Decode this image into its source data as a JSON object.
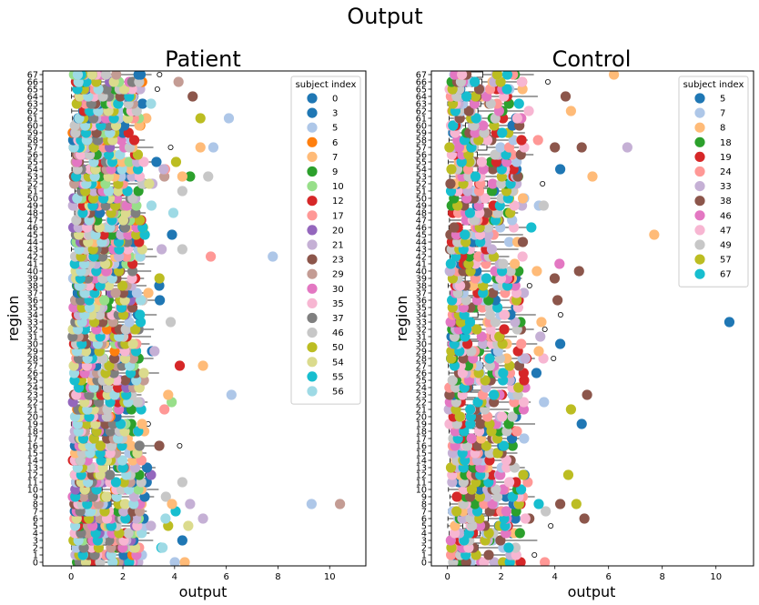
{
  "figure_title": "Output",
  "chart_data": [
    {
      "type": "scatter",
      "title": "Patient",
      "xlabel": "output",
      "ylabel": "region",
      "xlim": [
        -1.1,
        11.4
      ],
      "ylim": [
        -0.5,
        67.5
      ],
      "xticks": [
        0,
        2,
        4,
        6,
        8,
        10
      ],
      "yticks": [
        0,
        1,
        2,
        3,
        4,
        5,
        6,
        7,
        8,
        9,
        10,
        11,
        12,
        13,
        14,
        15,
        16,
        17,
        18,
        19,
        20,
        21,
        22,
        23,
        24,
        25,
        26,
        27,
        28,
        29,
        30,
        31,
        32,
        33,
        34,
        35,
        36,
        37,
        38,
        39,
        40,
        41,
        42,
        43,
        44,
        45,
        46,
        47,
        48,
        49,
        50,
        51,
        52,
        53,
        54,
        55,
        56,
        57,
        58,
        59,
        60,
        61,
        62,
        63,
        64,
        65,
        66,
        67
      ],
      "legend_title": "subject index",
      "legend_position": "top-right",
      "series": [
        {
          "name": "0",
          "color": "#1f77b4"
        },
        {
          "name": "3",
          "color": "#1f77b4"
        },
        {
          "name": "5",
          "color": "#aec7e8"
        },
        {
          "name": "6",
          "color": "#ff7f0e"
        },
        {
          "name": "7",
          "color": "#ffbb78"
        },
        {
          "name": "9",
          "color": "#2ca02c"
        },
        {
          "name": "10",
          "color": "#98df8a"
        },
        {
          "name": "12",
          "color": "#d62728"
        },
        {
          "name": "17",
          "color": "#ff9896"
        },
        {
          "name": "20",
          "color": "#9467bd"
        },
        {
          "name": "21",
          "color": "#c5b0d5"
        },
        {
          "name": "23",
          "color": "#8c564b"
        },
        {
          "name": "29",
          "color": "#c49c94"
        },
        {
          "name": "30",
          "color": "#e377c2"
        },
        {
          "name": "35",
          "color": "#f7b6d2"
        },
        {
          "name": "37",
          "color": "#7f7f7f"
        },
        {
          "name": "46",
          "color": "#c7c7c7"
        },
        {
          "name": "50",
          "color": "#bcbd22"
        },
        {
          "name": "54",
          "color": "#dbdb8d"
        },
        {
          "name": "55",
          "color": "#17becf"
        },
        {
          "name": "56",
          "color": "#9edae5"
        }
      ],
      "notable_points": [
        {
          "subject": "5",
          "x": 9.3,
          "y": 8
        },
        {
          "subject": "29",
          "x": 10.4,
          "y": 8
        },
        {
          "subject": "5",
          "x": 7.8,
          "y": 42
        },
        {
          "subject": "17",
          "x": 5.4,
          "y": 42
        },
        {
          "subject": "5",
          "x": 6.2,
          "y": 23
        },
        {
          "subject": "5",
          "x": 6.1,
          "y": 61
        },
        {
          "subject": "5",
          "x": 5.5,
          "y": 57
        },
        {
          "subject": "21",
          "x": 5.1,
          "y": 6
        },
        {
          "subject": "7",
          "x": 5.1,
          "y": 27
        },
        {
          "subject": "50",
          "x": 5.0,
          "y": 61
        },
        {
          "subject": "7",
          "x": 5.0,
          "y": 57
        },
        {
          "subject": "23",
          "x": 4.7,
          "y": 64
        },
        {
          "subject": "21",
          "x": 4.6,
          "y": 8
        },
        {
          "subject": "0",
          "x": 4.3,
          "y": 3
        },
        {
          "subject": "46",
          "x": 4.3,
          "y": 11
        },
        {
          "subject": "12",
          "x": 4.2,
          "y": 27
        },
        {
          "subject": "9",
          "x": 4.6,
          "y": 53
        },
        {
          "subject": "46",
          "x": 5.3,
          "y": 53
        },
        {
          "subject": "46",
          "x": 4.3,
          "y": 43
        },
        {
          "subject": "0",
          "x": 3.9,
          "y": 45
        },
        {
          "subject": "7",
          "x": 3.9,
          "y": 8
        },
        {
          "subject": "7",
          "x": 4.3,
          "y": 53
        }
      ]
    },
    {
      "type": "scatter",
      "title": "Control",
      "xlabel": "output",
      "ylabel": "region",
      "xlim": [
        -0.6,
        11.4
      ],
      "ylim": [
        -0.5,
        67.5
      ],
      "xticks": [
        0,
        2,
        4,
        6,
        8,
        10
      ],
      "yticks": [
        0,
        1,
        2,
        3,
        4,
        5,
        6,
        7,
        8,
        9,
        10,
        11,
        12,
        13,
        14,
        15,
        16,
        17,
        18,
        19,
        20,
        21,
        22,
        23,
        24,
        25,
        26,
        27,
        28,
        29,
        30,
        31,
        32,
        33,
        34,
        35,
        36,
        37,
        38,
        39,
        40,
        41,
        42,
        43,
        44,
        45,
        46,
        47,
        48,
        49,
        50,
        51,
        52,
        53,
        54,
        55,
        56,
        57,
        58,
        59,
        60,
        61,
        62,
        63,
        64,
        65,
        66,
        67
      ],
      "legend_title": "subject index",
      "legend_position": "top-right",
      "series": [
        {
          "name": "5",
          "color": "#1f77b4"
        },
        {
          "name": "7",
          "color": "#aec7e8"
        },
        {
          "name": "8",
          "color": "#ffbb78"
        },
        {
          "name": "18",
          "color": "#2ca02c"
        },
        {
          "name": "19",
          "color": "#d62728"
        },
        {
          "name": "24",
          "color": "#ff9896"
        },
        {
          "name": "33",
          "color": "#c5b0d5"
        },
        {
          "name": "38",
          "color": "#8c564b"
        },
        {
          "name": "46",
          "color": "#e377c2"
        },
        {
          "name": "47",
          "color": "#f7b6d2"
        },
        {
          "name": "49",
          "color": "#c7c7c7"
        },
        {
          "name": "57",
          "color": "#bcbd22"
        },
        {
          "name": "67",
          "color": "#17becf"
        }
      ],
      "notable_points": [
        {
          "subject": "5",
          "x": 10.5,
          "y": 33
        },
        {
          "subject": "8",
          "x": 7.7,
          "y": 45
        },
        {
          "subject": "33",
          "x": 6.7,
          "y": 57
        },
        {
          "subject": "8",
          "x": 6.2,
          "y": 67
        },
        {
          "subject": "8",
          "x": 5.4,
          "y": 53
        },
        {
          "subject": "38",
          "x": 5.2,
          "y": 23
        },
        {
          "subject": "38",
          "x": 5.1,
          "y": 6
        },
        {
          "subject": "5",
          "x": 5.0,
          "y": 19
        },
        {
          "subject": "38",
          "x": 5.0,
          "y": 57
        },
        {
          "subject": "38",
          "x": 4.9,
          "y": 40
        },
        {
          "subject": "57",
          "x": 4.8,
          "y": 8
        },
        {
          "subject": "57",
          "x": 4.6,
          "y": 21
        },
        {
          "subject": "8",
          "x": 4.6,
          "y": 62
        },
        {
          "subject": "57",
          "x": 4.5,
          "y": 12
        },
        {
          "subject": "38",
          "x": 4.4,
          "y": 64
        },
        {
          "subject": "5",
          "x": 4.2,
          "y": 30
        },
        {
          "subject": "5",
          "x": 4.2,
          "y": 54
        },
        {
          "subject": "38",
          "x": 4.2,
          "y": 8
        },
        {
          "subject": "38",
          "x": 4.1,
          "y": 36
        },
        {
          "subject": "38",
          "x": 4.0,
          "y": 57
        },
        {
          "subject": "8",
          "x": 3.5,
          "y": 33
        },
        {
          "subject": "8",
          "x": 3.4,
          "y": 29
        }
      ]
    }
  ]
}
